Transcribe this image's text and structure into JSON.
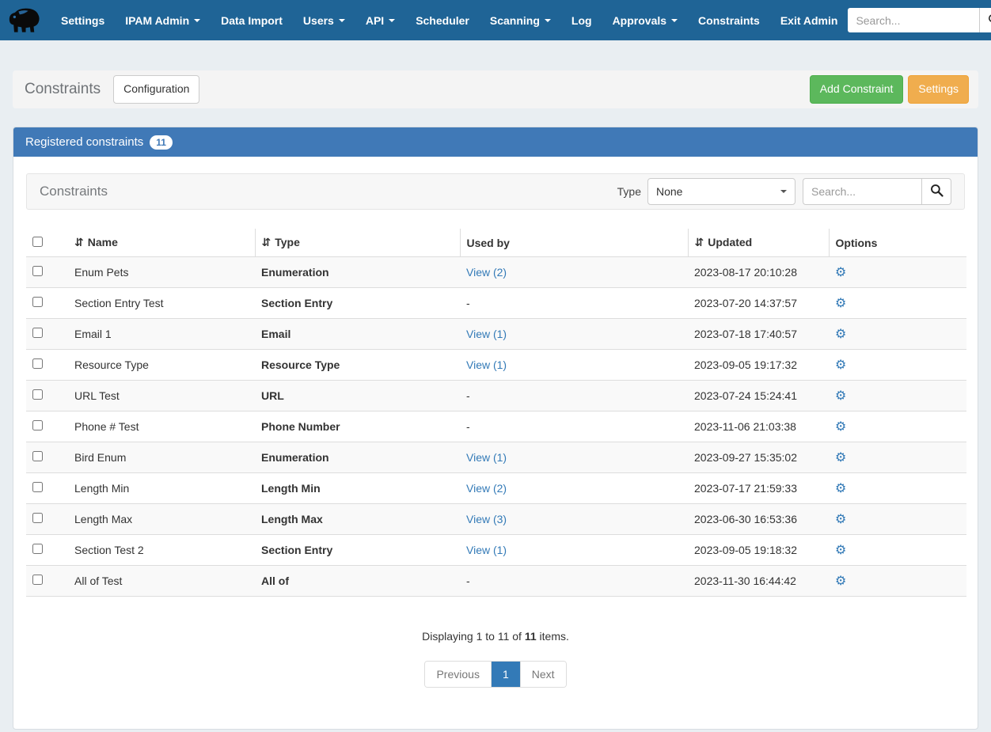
{
  "colors": {
    "navbar_bg": "#1f6496",
    "panel_header_bg": "#4079b7",
    "accent_link": "#337ab7",
    "add_button_green": "#5cb85c",
    "settings_button_orange": "#f0ad4e",
    "row_stripe": "#f9f9f9"
  },
  "navbar": {
    "logo_icon": "mammoth-logo",
    "items": [
      {
        "label": "Settings",
        "dropdown": false
      },
      {
        "label": "IPAM Admin",
        "dropdown": true
      },
      {
        "label": "Data Import",
        "dropdown": false
      },
      {
        "label": "Users",
        "dropdown": true
      },
      {
        "label": "API",
        "dropdown": true
      },
      {
        "label": "Scheduler",
        "dropdown": false
      },
      {
        "label": "Scanning",
        "dropdown": true
      },
      {
        "label": "Log",
        "dropdown": false
      },
      {
        "label": "Approvals",
        "dropdown": true
      },
      {
        "label": "Constraints",
        "dropdown": false
      },
      {
        "label": "Exit Admin",
        "dropdown": false
      }
    ],
    "search_placeholder": "Search...",
    "search_icon": "magnifier-icon",
    "user_icon": "user-icon"
  },
  "page_header": {
    "title": "Constraints",
    "configuration_button": "Configuration",
    "add_constraint_button": "Add Constraint",
    "settings_button": "Settings"
  },
  "panel": {
    "title": "Registered constraints",
    "count_badge": "11",
    "toolbar": {
      "title": "Constraints",
      "type_label": "Type",
      "type_selected": "None",
      "search_placeholder": "Search...",
      "search_icon": "magnifier-icon"
    },
    "table": {
      "sort_icon": "⇵",
      "columns": [
        {
          "label": "Name",
          "sortable": true
        },
        {
          "label": "Type",
          "sortable": true
        },
        {
          "label": "Used by",
          "sortable": false
        },
        {
          "label": "Updated",
          "sortable": true
        },
        {
          "label": "Options",
          "sortable": false
        }
      ],
      "options_icon": "gear-icon",
      "rows": [
        {
          "name": "Enum Pets",
          "type": "Enumeration",
          "used_by": "View (2)",
          "used_by_is_link": true,
          "updated": "2023-08-17 20:10:28"
        },
        {
          "name": "Section Entry Test",
          "type": "Section Entry",
          "used_by": "-",
          "used_by_is_link": false,
          "updated": "2023-07-20 14:37:57"
        },
        {
          "name": "Email 1",
          "type": "Email",
          "used_by": "View (1)",
          "used_by_is_link": true,
          "updated": "2023-07-18 17:40:57"
        },
        {
          "name": "Resource Type",
          "type": "Resource Type",
          "used_by": "View (1)",
          "used_by_is_link": true,
          "updated": "2023-09-05 19:17:32"
        },
        {
          "name": "URL Test",
          "type": "URL",
          "used_by": "-",
          "used_by_is_link": false,
          "updated": "2023-07-24 15:24:41"
        },
        {
          "name": "Phone # Test",
          "type": "Phone Number",
          "used_by": "-",
          "used_by_is_link": false,
          "updated": "2023-11-06 21:03:38"
        },
        {
          "name": "Bird Enum",
          "type": "Enumeration",
          "used_by": "View (1)",
          "used_by_is_link": true,
          "updated": "2023-09-27 15:35:02"
        },
        {
          "name": "Length Min",
          "type": "Length Min",
          "used_by": "View (2)",
          "used_by_is_link": true,
          "updated": "2023-07-17 21:59:33"
        },
        {
          "name": "Length Max",
          "type": "Length Max",
          "used_by": "View (3)",
          "used_by_is_link": true,
          "updated": "2023-06-30 16:53:36"
        },
        {
          "name": "Section Test 2",
          "type": "Section Entry",
          "used_by": "View (1)",
          "used_by_is_link": true,
          "updated": "2023-09-05 19:18:32"
        },
        {
          "name": "All of Test",
          "type": "All of",
          "used_by": "-",
          "used_by_is_link": false,
          "updated": "2023-11-30 16:44:42"
        }
      ]
    },
    "footer": {
      "summary_prefix": "Displaying 1 to 11 of ",
      "summary_total": "11",
      "summary_suffix": " items.",
      "pagination": {
        "previous": "Previous",
        "page": "1",
        "next": "Next"
      }
    }
  }
}
